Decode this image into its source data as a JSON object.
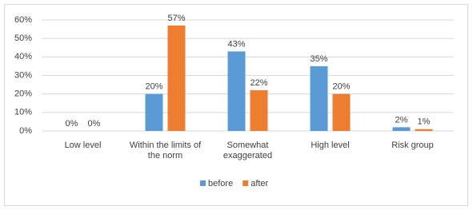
{
  "chart_data": {
    "type": "bar",
    "categories": [
      "Low level",
      "Within the limits of the norm",
      "Somewhat exaggerated",
      "High level",
      "Risk group"
    ],
    "series": [
      {
        "name": "before",
        "color": "#5b9bd5",
        "values": [
          0,
          20,
          43,
          35,
          2
        ],
        "value_labels": [
          "0%",
          "20%",
          "43%",
          "35%",
          "2%"
        ]
      },
      {
        "name": "after",
        "color": "#ed7d31",
        "values": [
          0,
          57,
          22,
          20,
          1
        ],
        "value_labels": [
          "0%",
          "57%",
          "22%",
          "20%",
          "1%"
        ]
      }
    ],
    "ylim": [
      0,
      60
    ],
    "yticks": [
      {
        "value": 0,
        "label": "0%"
      },
      {
        "value": 10,
        "label": "10%"
      },
      {
        "value": 20,
        "label": "20%"
      },
      {
        "value": 30,
        "label": "30%"
      },
      {
        "value": 40,
        "label": "40%"
      },
      {
        "value": 50,
        "label": "50%"
      },
      {
        "value": 60,
        "label": "60%"
      }
    ],
    "grid": true,
    "legend": "bottom"
  }
}
